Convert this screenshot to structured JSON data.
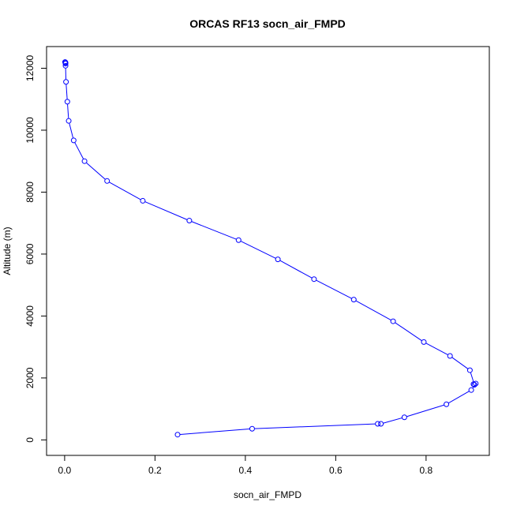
{
  "chart_data": {
    "type": "line",
    "title": "ORCAS RF13 socn_air_FMPD",
    "xlabel": "socn_air_FMPD",
    "ylabel": "Altitude (m)",
    "xlim": [
      -0.04,
      0.94
    ],
    "ylim": [
      -500,
      12700
    ],
    "x_ticks": [
      0.0,
      0.2,
      0.4,
      0.6,
      0.8
    ],
    "x_tick_labels": [
      "0.0",
      "0.2",
      "0.4",
      "0.6",
      "0.8"
    ],
    "y_ticks": [
      0,
      2000,
      4000,
      6000,
      8000,
      10000,
      12000
    ],
    "y_tick_labels": [
      "0",
      "2000",
      "4000",
      "6000",
      "8000",
      "10000",
      "12000"
    ],
    "grid": false,
    "marker": "open-circle",
    "line_color": "#0000ff",
    "series": [
      {
        "x": [
          0.25,
          0.415,
          0.693,
          0.7,
          0.752,
          0.845,
          0.9,
          0.91,
          0.905,
          0.907,
          0.897,
          0.853,
          0.795,
          0.727,
          0.64,
          0.552,
          0.472,
          0.385,
          0.276,
          0.173,
          0.094,
          0.044,
          0.02,
          0.009,
          0.006,
          0.003,
          0.002,
          0.002,
          0.002,
          0.001
        ],
        "y": [
          170,
          360,
          520,
          520,
          730,
          1150,
          1610,
          1820,
          1800,
          1780,
          2250,
          2710,
          3160,
          3830,
          4530,
          5190,
          5830,
          6450,
          7080,
          7720,
          8360,
          9000,
          9670,
          10300,
          10920,
          11560,
          12080,
          12150,
          12180,
          12200
        ]
      }
    ]
  }
}
